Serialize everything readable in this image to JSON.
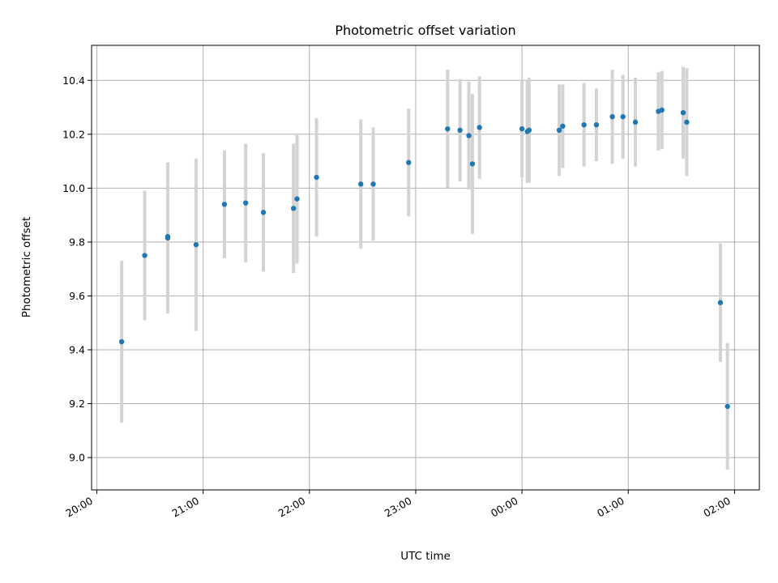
{
  "chart_data": {
    "type": "scatter",
    "title": "Photometric offset variation",
    "xlabel": "UTC time",
    "ylabel": "Photometric offset",
    "x_ticks": [
      "20:00",
      "21:00",
      "22:00",
      "23:00",
      "00:00",
      "01:00",
      "02:00"
    ],
    "y_ticks": [
      "9.0",
      "9.2",
      "9.4",
      "9.6",
      "9.8",
      "10.0",
      "10.2",
      "10.4"
    ],
    "xlim": [
      "2023-01-01 19:57",
      "2023-01-02 02:14"
    ],
    "ylim": [
      8.88,
      10.53
    ],
    "grid": true,
    "colors": {
      "point": "#1f77b4",
      "errorbar": "#d3d3d3"
    },
    "points": [
      {
        "t": "2023-01-01 20:14",
        "y": 9.43,
        "err": 0.3
      },
      {
        "t": "2023-01-01 20:27",
        "y": 9.75,
        "err": 0.24
      },
      {
        "t": "2023-01-01 20:40",
        "y": 9.82,
        "err": 0.27
      },
      {
        "t": "2023-01-01 20:40",
        "y": 9.815,
        "err": 0.28
      },
      {
        "t": "2023-01-01 20:56",
        "y": 9.79,
        "err": 0.32
      },
      {
        "t": "2023-01-01 21:12",
        "y": 9.94,
        "err": 0.2
      },
      {
        "t": "2023-01-01 21:24",
        "y": 9.945,
        "err": 0.22
      },
      {
        "t": "2023-01-01 21:34",
        "y": 9.91,
        "err": 0.22
      },
      {
        "t": "2023-01-01 21:51",
        "y": 9.925,
        "err": 0.24
      },
      {
        "t": "2023-01-01 21:53",
        "y": 9.96,
        "err": 0.24
      },
      {
        "t": "2023-01-01 22:04",
        "y": 10.04,
        "err": 0.22
      },
      {
        "t": "2023-01-01 22:29",
        "y": 10.015,
        "err": 0.24
      },
      {
        "t": "2023-01-01 22:36",
        "y": 10.015,
        "err": 0.21
      },
      {
        "t": "2023-01-01 22:56",
        "y": 10.095,
        "err": 0.2
      },
      {
        "t": "2023-01-01 23:18",
        "y": 10.22,
        "err": 0.22
      },
      {
        "t": "2023-01-01 23:25",
        "y": 10.215,
        "err": 0.19
      },
      {
        "t": "2023-01-01 23:30",
        "y": 10.195,
        "err": 0.2
      },
      {
        "t": "2023-01-01 23:32",
        "y": 10.09,
        "err": 0.26
      },
      {
        "t": "2023-01-01 23:36",
        "y": 10.225,
        "err": 0.19
      },
      {
        "t": "2023-01-02 00:00",
        "y": 10.22,
        "err": 0.18
      },
      {
        "t": "2023-01-02 00:03",
        "y": 10.21,
        "err": 0.19
      },
      {
        "t": "2023-01-02 00:04",
        "y": 10.215,
        "err": 0.195
      },
      {
        "t": "2023-01-02 00:21",
        "y": 10.215,
        "err": 0.17
      },
      {
        "t": "2023-01-02 00:23",
        "y": 10.23,
        "err": 0.155
      },
      {
        "t": "2023-01-02 00:35",
        "y": 10.235,
        "err": 0.155
      },
      {
        "t": "2023-01-02 00:42",
        "y": 10.235,
        "err": 0.135
      },
      {
        "t": "2023-01-02 00:51",
        "y": 10.265,
        "err": 0.175
      },
      {
        "t": "2023-01-02 00:57",
        "y": 10.265,
        "err": 0.155
      },
      {
        "t": "2023-01-02 01:04",
        "y": 10.245,
        "err": 0.165
      },
      {
        "t": "2023-01-02 01:17",
        "y": 10.285,
        "err": 0.145
      },
      {
        "t": "2023-01-02 01:19",
        "y": 10.29,
        "err": 0.145
      },
      {
        "t": "2023-01-02 01:31",
        "y": 10.28,
        "err": 0.17
      },
      {
        "t": "2023-01-02 01:33",
        "y": 10.245,
        "err": 0.2
      },
      {
        "t": "2023-01-02 01:52",
        "y": 9.575,
        "err": 0.22
      },
      {
        "t": "2023-01-02 01:56",
        "y": 9.19,
        "err": 0.235
      }
    ]
  }
}
